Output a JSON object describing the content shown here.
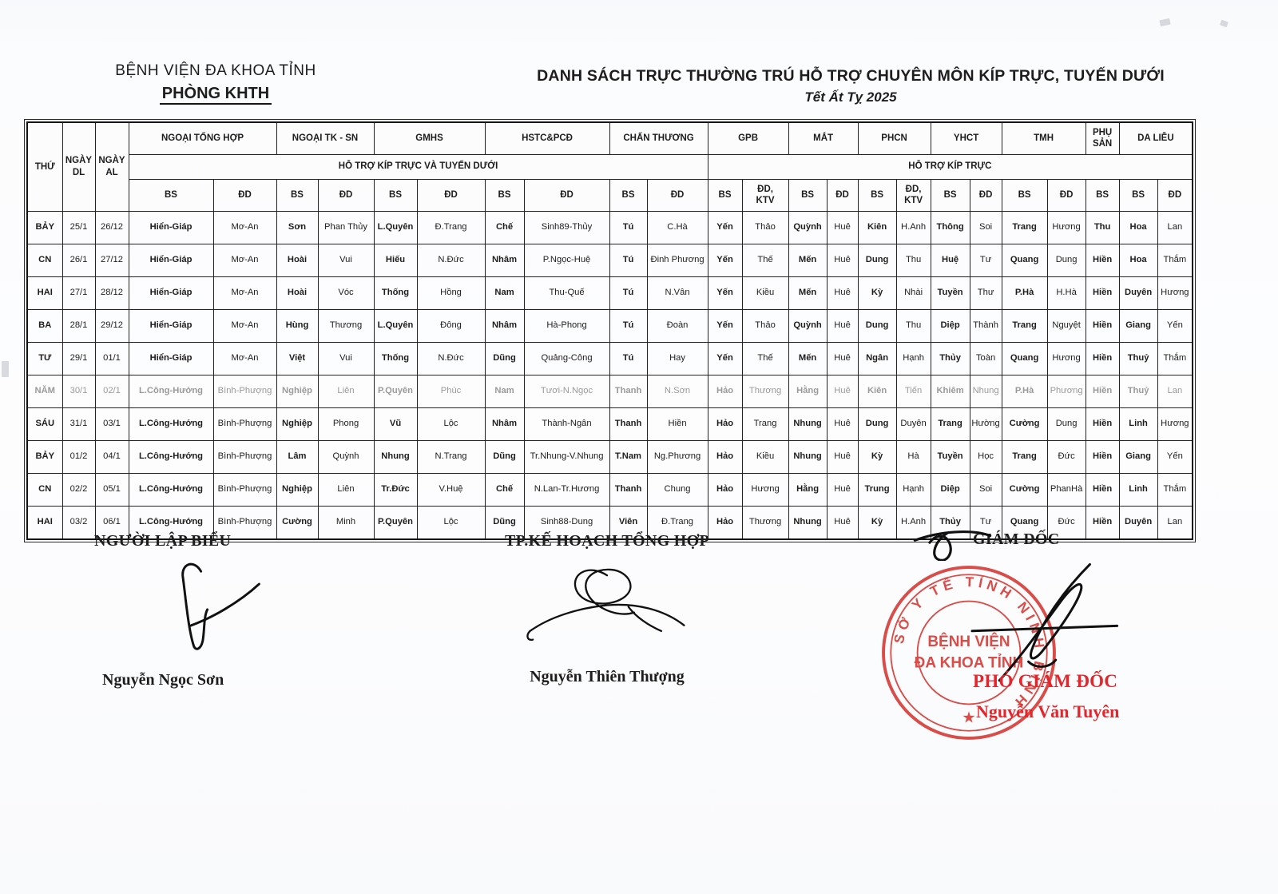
{
  "page": {
    "org_line1": "BỆNH VIỆN ĐA KHOA TỈNH",
    "org_line2": "PHÒNG KHTH",
    "title": "DANH SÁCH TRỰC THƯỜNG TRÚ HỖ TRỢ CHUYÊN MÔN KÍP TRỰC, TUYẾN DƯỚI",
    "subtitle": "Tết Ất Tỵ 2025"
  },
  "table": {
    "corner_headers": [
      {
        "line1": "THỨ",
        "line2": ""
      },
      {
        "line1": "NGÀY",
        "line2": "DL"
      },
      {
        "line1": "NGÀY",
        "line2": "AL"
      }
    ],
    "departments": [
      {
        "name": "NGOẠI TỔNG HỢP",
        "span": 2
      },
      {
        "name": "NGOẠI TK - SN",
        "span": 2
      },
      {
        "name": "GMHS",
        "span": 2
      },
      {
        "name": "HSTC&PCĐ",
        "span": 2
      },
      {
        "name": "CHẤN THƯƠNG",
        "span": 2
      },
      {
        "name": "GPB",
        "span": 2
      },
      {
        "name": "MẮT",
        "span": 2
      },
      {
        "name": "PHCN",
        "span": 2
      },
      {
        "name": "YHCT",
        "span": 2
      },
      {
        "name": "TMH",
        "span": 2
      },
      {
        "name": "PHỤ SẢN",
        "span": 1
      },
      {
        "name": "DA LIỄU",
        "span": 2
      }
    ],
    "band_left": "HỖ TRỢ KÍP TRỰC VÀ TUYẾN DƯỚI",
    "band_right": "HỖ TRỢ KÍP TRỰC",
    "sub_headers": [
      "BS",
      "ĐD",
      "BS",
      "ĐD",
      "BS",
      "ĐD",
      "BS",
      "ĐD",
      "BS",
      "ĐD",
      "BS",
      "ĐD,\nKTV",
      "BS",
      "ĐD",
      "BS",
      "ĐD,\nKTV",
      "BS",
      "ĐD",
      "BS",
      "ĐD",
      "BS",
      "BS",
      "ĐD"
    ],
    "rows": [
      {
        "thu": "BẢY",
        "dl": "25/1",
        "al": "26/12",
        "faded": false,
        "cells": [
          "Hiển-Giáp",
          "Mơ-An",
          "Sơn",
          "Phan Thủy",
          "L.Quyên",
          "Đ.Trang",
          "Chế",
          "Sinh89-Thủy",
          "Tú",
          "C.Hà",
          "Yến",
          "Thảo",
          "Quỳnh",
          "Huê",
          "Kiên",
          "H.Anh",
          "Thông",
          "Soi",
          "Trang",
          "Hương",
          "Thu",
          "Hoa",
          "Lan"
        ]
      },
      {
        "thu": "CN",
        "dl": "26/1",
        "al": "27/12",
        "faded": false,
        "cells": [
          "Hiển-Giáp",
          "Mơ-An",
          "Hoài",
          "Vui",
          "Hiếu",
          "N.Đức",
          "Nhâm",
          "P.Ngọc-Huệ",
          "Tú",
          "Đinh Phương",
          "Yến",
          "Thế",
          "Mến",
          "Huê",
          "Dung",
          "Thu",
          "Huệ",
          "Tư",
          "Quang",
          "Dung",
          "Hiền",
          "Hoa",
          "Thắm"
        ]
      },
      {
        "thu": "HAI",
        "dl": "27/1",
        "al": "28/12",
        "faded": false,
        "cells": [
          "Hiển-Giáp",
          "Mơ-An",
          "Hoài",
          "Vóc",
          "Thống",
          "Hồng",
          "Nam",
          "Thu-Quế",
          "Tú",
          "N.Vân",
          "Yến",
          "Kiều",
          "Mến",
          "Huê",
          "Kỳ",
          "Nhài",
          "Tuyền",
          "Thư",
          "P.Hà",
          "H.Hà",
          "Hiền",
          "Duyên",
          "Hương"
        ]
      },
      {
        "thu": "BA",
        "dl": "28/1",
        "al": "29/12",
        "faded": false,
        "cells": [
          "Hiển-Giáp",
          "Mơ-An",
          "Hùng",
          "Thương",
          "L.Quyên",
          "Đông",
          "Nhâm",
          "Hà-Phong",
          "Tú",
          "Đoàn",
          "Yến",
          "Thảo",
          "Quỳnh",
          "Huê",
          "Dung",
          "Thu",
          "Diệp",
          "Thành",
          "Trang",
          "Nguyệt",
          "Hiền",
          "Giang",
          "Yến"
        ]
      },
      {
        "thu": "TƯ",
        "dl": "29/1",
        "al": "01/1",
        "faded": false,
        "cells": [
          "Hiển-Giáp",
          "Mơ-An",
          "Việt",
          "Vui",
          "Thống",
          "N.Đức",
          "Dũng",
          "Quảng-Công",
          "Tú",
          "Hay",
          "Yến",
          "Thế",
          "Mến",
          "Huê",
          "Ngân",
          "Hạnh",
          "Thủy",
          "Toàn",
          "Quang",
          "Hương",
          "Hiền",
          "Thuỷ",
          "Thắm"
        ]
      },
      {
        "thu": "NĂM",
        "dl": "30/1",
        "al": "02/1",
        "faded": true,
        "cells": [
          "L.Công-Hướng",
          "Bình-Phượng",
          "Nghiệp",
          "Liên",
          "P.Quyên",
          "Phúc",
          "Nam",
          "Tươi-N.Ngọc",
          "Thanh",
          "N.Sơn",
          "Hảo",
          "Thương",
          "Hằng",
          "Huê",
          "Kiên",
          "Tiến",
          "Khiêm",
          "Nhung",
          "P.Hà",
          "Phương",
          "Hiền",
          "Thuỷ",
          "Lan"
        ]
      },
      {
        "thu": "SÁU",
        "dl": "31/1",
        "al": "03/1",
        "faded": false,
        "cells": [
          "L.Công-Hướng",
          "Bình-Phượng",
          "Nghiệp",
          "Phong",
          "Vũ",
          "Lộc",
          "Nhâm",
          "Thành-Ngân",
          "Thanh",
          "Hiền",
          "Hảo",
          "Trang",
          "Nhung",
          "Huê",
          "Dung",
          "Duyên",
          "Trang",
          "Hường",
          "Cường",
          "Dung",
          "Hiền",
          "Linh",
          "Hương"
        ]
      },
      {
        "thu": "BẢY",
        "dl": "01/2",
        "al": "04/1",
        "faded": false,
        "cells": [
          "L.Công-Hướng",
          "Bình-Phượng",
          "Lâm",
          "Quỳnh",
          "Nhung",
          "N.Trang",
          "Dũng",
          "Tr.Nhung-V.Nhung",
          "T.Nam",
          "Ng.Phương",
          "Hảo",
          "Kiều",
          "Nhung",
          "Huê",
          "Kỳ",
          "Hà",
          "Tuyền",
          "Học",
          "Trang",
          "Đức",
          "Hiền",
          "Giang",
          "Yến"
        ]
      },
      {
        "thu": "CN",
        "dl": "02/2",
        "al": "05/1",
        "faded": false,
        "cells": [
          "L.Công-Hướng",
          "Bình-Phượng",
          "Nghiệp",
          "Liên",
          "Tr.Đức",
          "V.Huệ",
          "Chế",
          "N.Lan-Tr.Hương",
          "Thanh",
          "Chung",
          "Hảo",
          "Hương",
          "Hằng",
          "Huê",
          "Trung",
          "Hạnh",
          "Diệp",
          "Soi",
          "Cường",
          "PhanHà",
          "Hiền",
          "Linh",
          "Thắm"
        ]
      },
      {
        "thu": "HAI",
        "dl": "03/2",
        "al": "06/1",
        "faded": false,
        "cells": [
          "L.Công-Hướng",
          "Bình-Phượng",
          "Cường",
          "Minh",
          "P.Quyên",
          "Lộc",
          "Dũng",
          "Sinh88-Dung",
          "Viên",
          "Đ.Trang",
          "Hảo",
          "Thương",
          "Nhung",
          "Huê",
          "Kỳ",
          "H.Anh",
          "Thủy",
          "Tư",
          "Quang",
          "Đức",
          "Hiền",
          "Duyên",
          "Lan"
        ]
      }
    ]
  },
  "signatures": {
    "left": {
      "title": "NGƯỜI LẬP BIỂU",
      "name": "Nguyễn Ngọc Sơn"
    },
    "center": {
      "title": "TP.KẾ HOẠCH TỔNG HỢP",
      "name": "Nguyễn Thiên Thượng"
    },
    "right": {
      "title": "GIÁM ĐỐC",
      "role": "PHÓ GIÁM ĐỐC",
      "name": "Nguyễn Văn Tuyên"
    }
  },
  "stamp": {
    "ring_text": "SỞ Y TẾ TỈNH NINH BÌNH",
    "center_line1": "BỆNH VIỆN",
    "center_line2": "ĐA KHOA TỈNH",
    "star": "★",
    "color": "#d5342f"
  },
  "colors": {
    "ink": "#1d1d1d",
    "stamp_red": "#d5342f",
    "signature_red_text": "#e3262b",
    "table_border": "#232323"
  }
}
